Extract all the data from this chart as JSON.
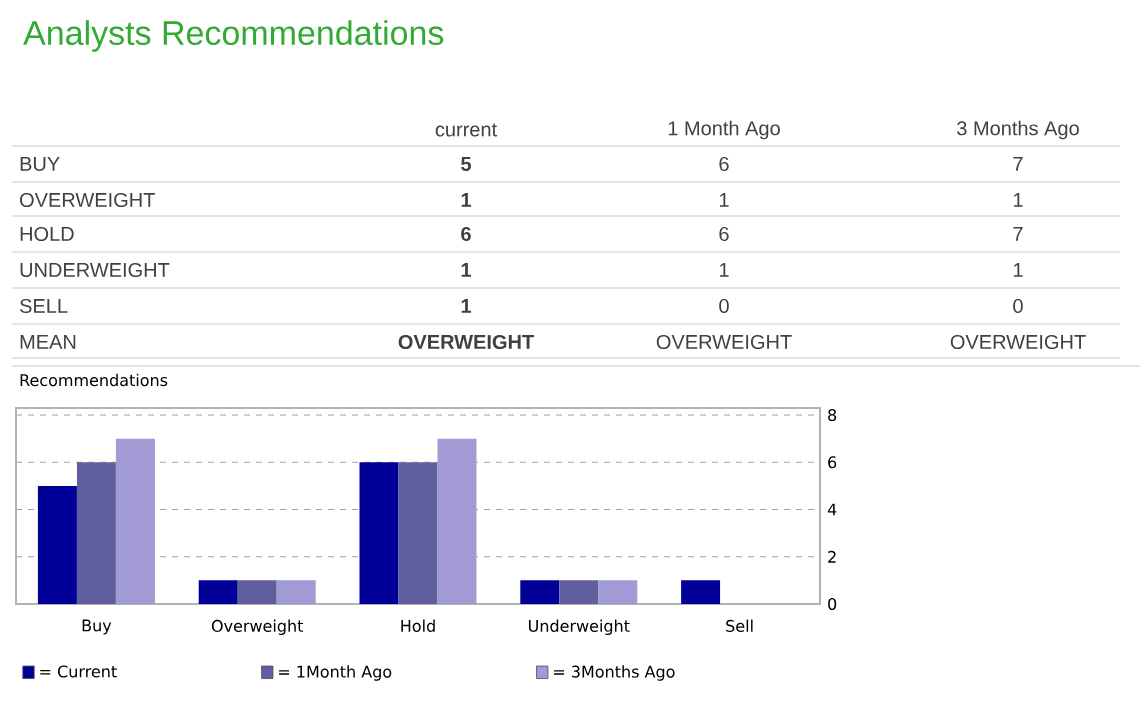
{
  "chart_data": {
    "type": "bar",
    "title": "Analysts Recommendations",
    "subtitle": "Recommendations",
    "categories": [
      "Buy",
      "Overweight",
      "Hold",
      "Underweight",
      "Sell"
    ],
    "series": [
      {
        "name": "= Current",
        "color": "#000099",
        "values": [
          5,
          1,
          6,
          1,
          1
        ]
      },
      {
        "name": "= 1Month Ago",
        "color": "#5f5f9f",
        "values": [
          6,
          1,
          6,
          1,
          0
        ]
      },
      {
        "name": "= 3Months Ago",
        "color": "#a29ad5",
        "values": [
          7,
          1,
          7,
          1,
          0
        ]
      }
    ],
    "ylim": [
      0,
      8.3
    ],
    "yticks": [
      0,
      2,
      4,
      6,
      8
    ],
    "grid": "y",
    "legend": "bottom",
    "annotations": [
      "current",
      "1 Month Ago",
      "3 Months Ago",
      "BUY",
      "5",
      "6",
      "7",
      "OVERWEIGHT",
      "1",
      "1",
      "1",
      "HOLD",
      "6",
      "6",
      "7",
      "UNDERWEIGHT",
      "1",
      "1",
      "1",
      "SELL",
      "1",
      "0",
      "0",
      "MEAN",
      "OVERWEIGHT",
      "OVERWEIGHT",
      "OVERWEIGHT"
    ]
  }
}
